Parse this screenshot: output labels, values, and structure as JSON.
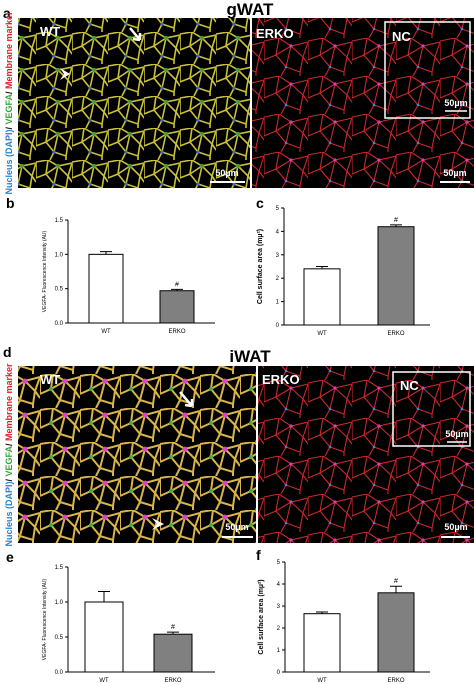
{
  "figure": {
    "section_titles": [
      "gWAT",
      "iWAT"
    ],
    "panel_letters": [
      "a",
      "b",
      "c",
      "d",
      "e",
      "f"
    ],
    "stain_label": [
      "Nucleus (DAPI)",
      "/ ",
      "VEGFA",
      "/ ",
      "Membrane marker"
    ],
    "image_labels": {
      "wt": "WT",
      "erko": "ERKO",
      "nc": "NC",
      "scale": "50µm"
    }
  },
  "chart_data": [
    {
      "type": "bar",
      "categories": [
        "WT",
        "ERKO"
      ],
      "values": [
        1.0,
        0.47
      ],
      "errors": [
        0.04,
        0.02
      ],
      "colors": [
        "#ffffff",
        "#808080"
      ],
      "annotations": [
        null,
        "#"
      ],
      "y_label": "VEGFA- Fluorescence Intensity (AU)",
      "ylim": [
        0,
        1.5
      ],
      "yticks": [
        {
          "value": 0,
          "label": "0.0"
        },
        {
          "value": 0.5,
          "label": "0.5"
        },
        {
          "value": 1,
          "label": "1.0"
        },
        {
          "value": 1.5,
          "label": "1.5"
        }
      ]
    },
    {
      "type": "bar",
      "categories": [
        "WT",
        "ERKO"
      ],
      "values": [
        2.4,
        4.2
      ],
      "errors": [
        0.1,
        0.08
      ],
      "colors": [
        "#ffffff",
        "#808080"
      ],
      "annotations": [
        null,
        "#"
      ],
      "y_label": "Cell surface area (mµ²)",
      "ylim": [
        0,
        5
      ],
      "yticks": [
        0,
        1,
        2,
        3,
        4,
        5
      ]
    },
    {
      "type": "bar",
      "categories": [
        "WT",
        "ERKO"
      ],
      "values": [
        1.0,
        0.54
      ],
      "errors": [
        0.15,
        0.03
      ],
      "colors": [
        "#ffffff",
        "#808080"
      ],
      "annotations": [
        null,
        "#"
      ],
      "y_label": "VEGFA- Fluorescence Intensity (AU)",
      "ylim": [
        0,
        1.5
      ],
      "yticks": [
        {
          "value": 0,
          "label": "0.0"
        },
        {
          "value": 0.5,
          "label": "0.5"
        },
        {
          "value": 1,
          "label": "1.0"
        },
        {
          "value": 1.5,
          "label": "1.5"
        }
      ]
    },
    {
      "type": "bar",
      "categories": [
        "WT",
        "ERKO"
      ],
      "values": [
        2.65,
        3.6
      ],
      "errors": [
        0.08,
        0.3
      ],
      "colors": [
        "#ffffff",
        "#808080"
      ],
      "annotations": [
        null,
        "#"
      ],
      "y_label": "Cell surface area (mµ²)",
      "ylim": [
        0,
        5
      ],
      "yticks": [
        0,
        1,
        2,
        3,
        4,
        5
      ]
    }
  ]
}
